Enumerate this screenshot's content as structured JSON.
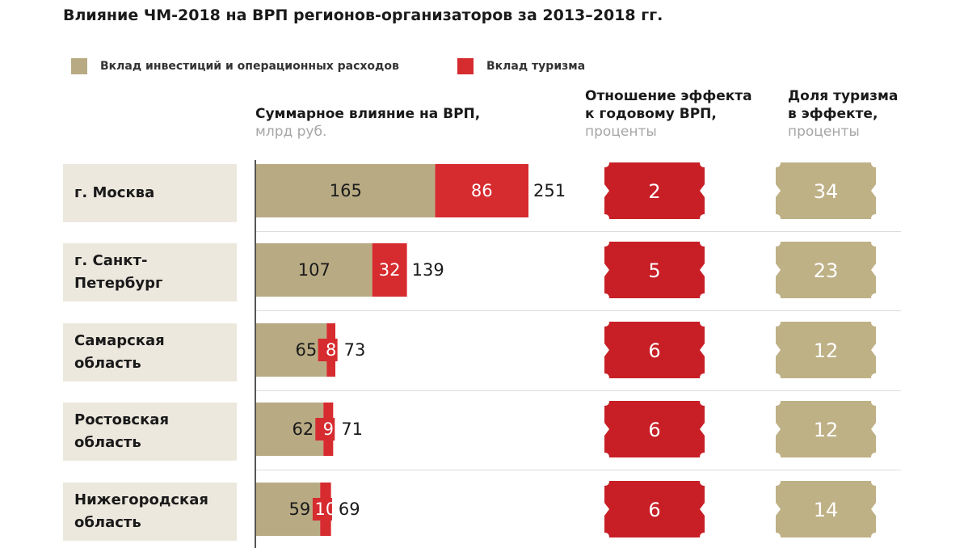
{
  "title": "Влияние ЧМ-2018 на ВРП регионов-организаторов за 2013–2018 гг.",
  "legend": [
    {
      "label": "Вклад инвестиций и операционных расходов",
      "color": "#b8ab84"
    },
    {
      "label": "Вклад туризма",
      "color": "#d62b2f"
    }
  ],
  "columns": {
    "total": {
      "title": "Суммарное влияние на ВРП,",
      "sub": "млрд руб."
    },
    "ratio": {
      "title_1": "Отношение эффекта",
      "title_2": "к годовому ВРП,",
      "sub": "проценты"
    },
    "share": {
      "title_1": "Доля туризма",
      "title_2": "в эффекте,",
      "sub": "проценты"
    }
  },
  "colors": {
    "invest": "#b8ab84",
    "tourism": "#d62b2f",
    "ratio_badge": "#c81f26",
    "share_badge": "#bfb186",
    "label_bg": "#ede8de"
  },
  "chart_data": {
    "type": "bar",
    "orientation": "horizontal",
    "stacked": true,
    "categories": [
      "г. Москва",
      "г. Санкт-\nПетербург",
      "Самарская\nобласть",
      "Ростовская\nобласть",
      "Нижегородская\nобласть"
    ],
    "series": [
      {
        "name": "Вклад инвестиций и операционных расходов",
        "values": [
          165,
          107,
          65,
          62,
          59
        ]
      },
      {
        "name": "Вклад туризма",
        "values": [
          86,
          32,
          8,
          9,
          10
        ]
      }
    ],
    "totals": [
      251,
      139,
      73,
      71,
      69
    ],
    "ratio_percent": [
      2,
      5,
      6,
      6,
      6
    ],
    "tourism_share_percent": [
      34,
      23,
      12,
      12,
      14
    ],
    "xlim": [
      0,
      251
    ]
  }
}
